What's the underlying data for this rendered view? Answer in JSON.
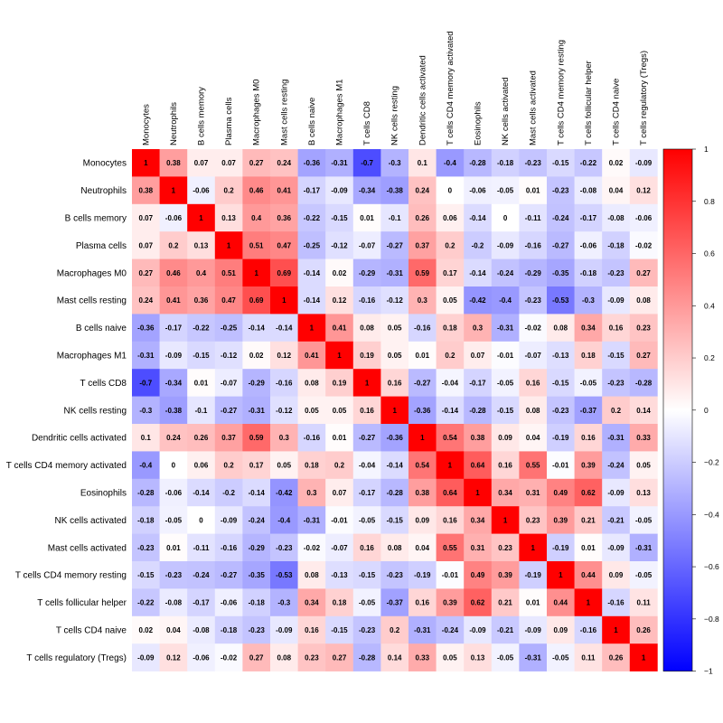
{
  "chart_data": {
    "type": "heatmap",
    "title": "",
    "variables": [
      "Monocytes",
      "Neutrophils",
      "B cells memory",
      "Plasma cells",
      "Macrophages M0",
      "Mast cells resting",
      "B cells naive",
      "Macrophages M1",
      "T cells CD8",
      "NK cells resting",
      "Dendritic cells activated",
      "T cells CD4 memory activated",
      "Eosinophils",
      "NK cells activated",
      "Mast cells activated",
      "T cells CD4 memory resting",
      "T cells follicular helper",
      "T cells CD4 naive",
      "T cells regulatory (Tregs)"
    ],
    "matrix": [
      [
        1,
        0.38,
        0.07,
        0.07,
        0.27,
        0.24,
        -0.36,
        -0.31,
        -0.7,
        -0.3,
        0.1,
        -0.4,
        -0.28,
        -0.18,
        -0.23,
        -0.15,
        -0.22,
        0.02,
        -0.09
      ],
      [
        0.38,
        1,
        -0.06,
        0.2,
        0.46,
        0.41,
        -0.17,
        -0.09,
        -0.34,
        -0.38,
        0.24,
        0,
        -0.06,
        -0.05,
        0.01,
        -0.23,
        -0.08,
        0.04,
        0.12
      ],
      [
        0.07,
        -0.06,
        1,
        0.13,
        0.4,
        0.36,
        -0.22,
        -0.15,
        0.01,
        -0.1,
        0.26,
        0.06,
        -0.14,
        0,
        -0.11,
        -0.24,
        -0.17,
        -0.08,
        -0.06
      ],
      [
        0.07,
        0.2,
        0.13,
        1,
        0.51,
        0.47,
        -0.25,
        -0.12,
        -0.07,
        -0.27,
        0.37,
        0.2,
        -0.2,
        -0.09,
        -0.16,
        -0.27,
        -0.06,
        -0.18,
        -0.02
      ],
      [
        0.27,
        0.46,
        0.4,
        0.51,
        1,
        0.69,
        -0.14,
        0.02,
        -0.29,
        -0.31,
        0.59,
        0.17,
        -0.14,
        -0.24,
        -0.29,
        -0.35,
        -0.18,
        -0.23,
        0.27
      ],
      [
        0.24,
        0.41,
        0.36,
        0.47,
        0.69,
        1,
        -0.14,
        0.12,
        -0.16,
        -0.12,
        0.3,
        0.05,
        -0.42,
        -0.4,
        -0.23,
        -0.53,
        -0.3,
        -0.09,
        0.08
      ],
      [
        -0.36,
        -0.17,
        -0.22,
        -0.25,
        -0.14,
        -0.14,
        1,
        0.41,
        0.08,
        0.05,
        -0.16,
        0.18,
        0.3,
        -0.31,
        -0.02,
        0.08,
        0.34,
        0.16,
        0.23
      ],
      [
        -0.31,
        -0.09,
        -0.15,
        -0.12,
        0.02,
        0.12,
        0.41,
        1,
        0.19,
        0.05,
        0.01,
        0.2,
        0.07,
        -0.01,
        -0.07,
        -0.13,
        0.18,
        -0.15,
        0.27
      ],
      [
        -0.7,
        -0.34,
        0.01,
        -0.07,
        -0.29,
        -0.16,
        0.08,
        0.19,
        1,
        0.16,
        -0.27,
        -0.04,
        -0.17,
        -0.05,
        0.16,
        -0.15,
        -0.05,
        -0.23,
        -0.28
      ],
      [
        -0.3,
        -0.38,
        -0.1,
        -0.27,
        -0.31,
        -0.12,
        0.05,
        0.05,
        0.16,
        1,
        -0.36,
        -0.14,
        -0.28,
        -0.15,
        0.08,
        -0.23,
        -0.37,
        0.2,
        0.14
      ],
      [
        0.1,
        0.24,
        0.26,
        0.37,
        0.59,
        0.3,
        -0.16,
        0.01,
        -0.27,
        -0.36,
        1,
        0.54,
        0.38,
        0.09,
        0.04,
        -0.19,
        0.16,
        -0.31,
        0.33
      ],
      [
        -0.4,
        0,
        0.06,
        0.2,
        0.17,
        0.05,
        0.18,
        0.2,
        -0.04,
        -0.14,
        0.54,
        1,
        0.64,
        0.16,
        0.55,
        -0.01,
        0.39,
        -0.24,
        0.05
      ],
      [
        -0.28,
        -0.06,
        -0.14,
        -0.2,
        -0.14,
        -0.42,
        0.3,
        0.07,
        -0.17,
        -0.28,
        0.38,
        0.64,
        1,
        0.34,
        0.31,
        0.49,
        0.62,
        -0.09,
        0.13
      ],
      [
        -0.18,
        -0.05,
        0,
        -0.09,
        -0.24,
        -0.4,
        -0.31,
        -0.01,
        -0.05,
        -0.15,
        0.09,
        0.16,
        0.34,
        1,
        0.23,
        0.39,
        0.21,
        -0.21,
        -0.05
      ],
      [
        -0.23,
        0.01,
        -0.11,
        -0.16,
        -0.29,
        -0.23,
        -0.02,
        -0.07,
        0.16,
        0.08,
        0.04,
        0.55,
        0.31,
        0.23,
        1,
        -0.19,
        0.01,
        -0.09,
        -0.31
      ],
      [
        -0.15,
        -0.23,
        -0.24,
        -0.27,
        -0.35,
        -0.53,
        0.08,
        -0.13,
        -0.15,
        -0.23,
        -0.19,
        -0.01,
        0.49,
        0.39,
        -0.19,
        1,
        0.44,
        0.09,
        -0.05
      ],
      [
        -0.22,
        -0.08,
        -0.17,
        -0.06,
        -0.18,
        -0.3,
        0.34,
        0.18,
        -0.05,
        -0.37,
        0.16,
        0.39,
        0.62,
        0.21,
        0.01,
        0.44,
        1,
        -0.16,
        0.11
      ],
      [
        0.02,
        0.04,
        -0.08,
        -0.18,
        -0.23,
        -0.09,
        0.16,
        -0.15,
        -0.23,
        0.2,
        -0.31,
        -0.24,
        -0.09,
        -0.21,
        -0.09,
        0.09,
        -0.16,
        1,
        0.26
      ],
      [
        -0.09,
        0.12,
        -0.06,
        -0.02,
        0.27,
        0.08,
        0.23,
        0.27,
        -0.28,
        0.14,
        0.33,
        0.05,
        0.13,
        -0.05,
        -0.31,
        -0.05,
        0.11,
        0.26,
        1
      ]
    ],
    "colorbar": {
      "range": [
        -1,
        1
      ],
      "ticks": [
        "1",
        "0.8",
        "0.6",
        "0.4",
        "0.2",
        "0",
        "−0.2",
        "−0.4",
        "−0.6",
        "−0.8",
        "−1"
      ],
      "tick_values": [
        1,
        0.8,
        0.6,
        0.4,
        0.2,
        0,
        -0.2,
        -0.4,
        -0.6,
        -0.8,
        -1
      ],
      "colors": {
        "negative": "#0000ff",
        "zero": "#ffffff",
        "positive": "#ff0000"
      }
    },
    "legend": "right"
  }
}
